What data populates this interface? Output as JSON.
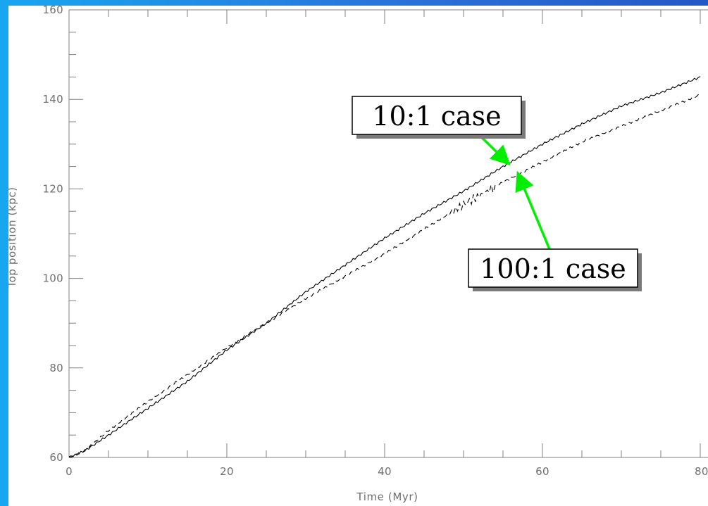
{
  "chart_data": {
    "type": "line",
    "title": "",
    "xlabel": "Time (Myr)",
    "ylabel": "Top position (kpc)",
    "xlim": [
      0,
      80
    ],
    "ylim": [
      60,
      160
    ],
    "xticks": [
      0,
      20,
      40,
      60,
      80
    ],
    "yticks": [
      60,
      80,
      100,
      120,
      140,
      160
    ],
    "x_tick_labels": [
      "0",
      "20",
      "40",
      "60",
      "80"
    ],
    "y_tick_labels": [
      "60",
      "80",
      "100",
      "120",
      "140",
      "160"
    ],
    "grid": false,
    "series": [
      {
        "style": "solid",
        "color": "#000000",
        "x": [
          0,
          2,
          5,
          10,
          15,
          20,
          25,
          30,
          35,
          40,
          45,
          50,
          55,
          60,
          65,
          70,
          75,
          80
        ],
        "y": [
          60,
          61.5,
          65,
          71,
          77,
          84,
          90,
          97,
          103,
          109,
          114.5,
          119.5,
          125,
          130,
          134.5,
          138.5,
          141.5,
          145
        ]
      },
      {
        "style": "dashed",
        "color": "#000000",
        "x": [
          0,
          2,
          5,
          10,
          15,
          20,
          25,
          30,
          35,
          40,
          45,
          50,
          55,
          60,
          65,
          70,
          75,
          80
        ],
        "y": [
          60,
          61.5,
          66,
          72.5,
          78.5,
          84.5,
          90,
          95.5,
          100.5,
          105.5,
          111,
          116.5,
          121.5,
          126,
          130.5,
          134,
          137.5,
          141
        ]
      }
    ],
    "annotations": [
      {
        "text": "10:1 case",
        "points_to": {
          "x": 55.5,
          "y": 126
        }
      },
      {
        "text": "100:1 case",
        "points_to": {
          "x": 57,
          "y": 123
        }
      }
    ]
  },
  "colors": {
    "background": "#1f6fd6",
    "left_stripe": "#18a6f0",
    "plot_panel": "#ffffff",
    "axis": "#808080",
    "tick_label": "#6e6e6e",
    "line": "#000000",
    "arrow": "#00ee00"
  }
}
